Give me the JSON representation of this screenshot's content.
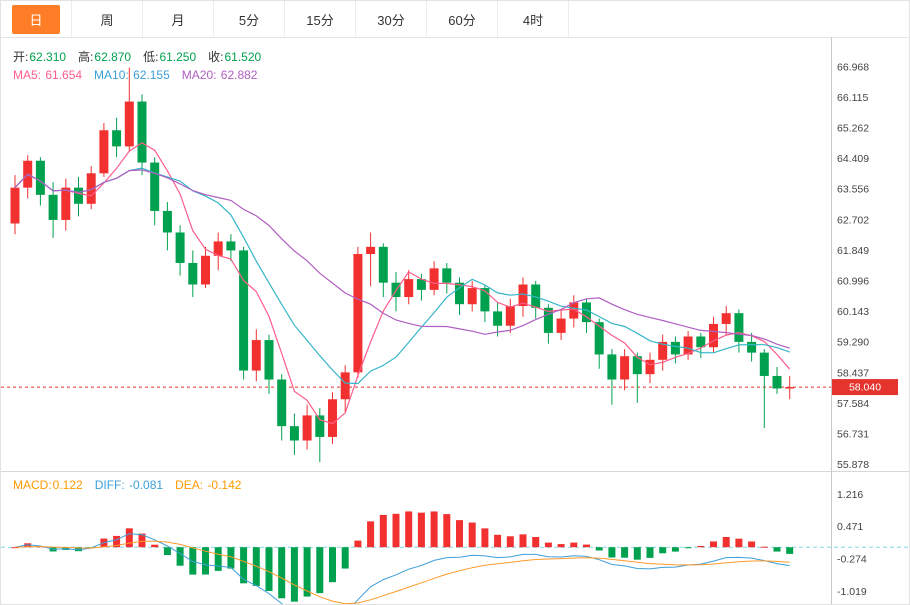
{
  "tabs": [
    {
      "label": "日",
      "name": "day",
      "active": true
    },
    {
      "label": "周",
      "name": "week",
      "active": false
    },
    {
      "label": "月",
      "name": "month",
      "active": false
    },
    {
      "label": "5分",
      "name": "5min",
      "active": false
    },
    {
      "label": "15分",
      "name": "15min",
      "active": false
    },
    {
      "label": "30分",
      "name": "30min",
      "active": false
    },
    {
      "label": "60分",
      "name": "60min",
      "active": false
    },
    {
      "label": "4时",
      "name": "4hour",
      "active": false
    }
  ],
  "main_chart": {
    "info_ohlc": [
      {
        "label": "开:",
        "value": "62.310",
        "value_color": "#00a14e"
      },
      {
        "label": "高:",
        "value": "62.870",
        "value_color": "#00a14e"
      },
      {
        "label": "低:",
        "value": "61.250",
        "value_color": "#00a14e"
      },
      {
        "label": "收:",
        "value": "61.520",
        "value_color": "#00a14e"
      }
    ],
    "info_ma": [
      {
        "label": "MA5: ",
        "value": "61.654",
        "color": "#ff5c8a"
      },
      {
        "label": "MA10: ",
        "value": "62.155",
        "color": "#3d9fd8"
      },
      {
        "label": "MA20: ",
        "value": "62.882",
        "color": "#b05fc2"
      }
    ],
    "axis_labels": [
      "66.968",
      "66.115",
      "65.262",
      "64.409",
      "63.556",
      "62.702",
      "61.849",
      "60.996",
      "60.143",
      "59.290",
      "58.437",
      "57.584",
      "56.731",
      "55.878"
    ],
    "price_tag": "58.040"
  },
  "macd_panel": {
    "info": [
      {
        "label": "MACD:",
        "value": "0.122",
        "color": "#ff9900"
      },
      {
        "label": "DIFF: ",
        "value": "-0.081",
        "color": "#3d9fd8"
      },
      {
        "label": "DEA: ",
        "value": "-0.142",
        "color": "#ff9900"
      }
    ],
    "axis_labels": [
      "1.216",
      "0.471",
      "-0.274",
      "-1.019"
    ]
  },
  "chart_data": {
    "type": "candlestick",
    "timeframe_selected": "日",
    "ohlc_display": {
      "open": 62.31,
      "high": 62.87,
      "low": 61.25,
      "close": 61.52
    },
    "indicators": {
      "ma": {
        "MA5": 61.654,
        "MA10": 62.155,
        "MA20": 62.882
      },
      "macd": {
        "MACD": 0.122,
        "DIFF": -0.081,
        "DEA": -0.142
      }
    },
    "last_price": 58.04,
    "y_ticks": [
      66.968,
      66.115,
      65.262,
      64.409,
      63.556,
      62.702,
      61.849,
      60.996,
      60.143,
      59.29,
      58.437,
      57.584,
      56.731,
      55.878
    ],
    "macd_ticks": [
      1.216,
      0.471,
      -0.274,
      -1.019
    ],
    "candles": [
      [
        62.6,
        63.95,
        62.3,
        63.6
      ],
      [
        63.6,
        64.5,
        63.3,
        64.35
      ],
      [
        64.35,
        64.45,
        63.1,
        63.4
      ],
      [
        63.4,
        63.75,
        62.2,
        62.7
      ],
      [
        62.7,
        63.85,
        62.4,
        63.6
      ],
      [
        63.6,
        63.9,
        62.8,
        63.15
      ],
      [
        63.15,
        64.2,
        63.0,
        64.0
      ],
      [
        64.0,
        65.4,
        63.9,
        65.2
      ],
      [
        65.2,
        65.55,
        64.45,
        64.75
      ],
      [
        64.75,
        66.95,
        64.6,
        66.0
      ],
      [
        66.0,
        66.2,
        63.95,
        64.3
      ],
      [
        64.3,
        64.45,
        62.55,
        62.95
      ],
      [
        62.95,
        63.2,
        61.85,
        62.35
      ],
      [
        62.35,
        62.55,
        61.15,
        61.5
      ],
      [
        61.5,
        61.85,
        60.55,
        60.9
      ],
      [
        60.9,
        61.95,
        60.8,
        61.7
      ],
      [
        61.7,
        62.35,
        61.3,
        62.1
      ],
      [
        62.1,
        62.3,
        61.55,
        61.85
      ],
      [
        61.85,
        61.95,
        58.25,
        58.5
      ],
      [
        58.5,
        59.65,
        58.2,
        59.35
      ],
      [
        59.35,
        59.5,
        57.85,
        58.25
      ],
      [
        58.25,
        58.4,
        56.55,
        56.95
      ],
      [
        56.95,
        57.3,
        56.15,
        56.55
      ],
      [
        56.55,
        57.55,
        56.3,
        57.25
      ],
      [
        57.25,
        57.45,
        55.95,
        56.65
      ],
      [
        56.65,
        57.9,
        56.45,
        57.7
      ],
      [
        57.7,
        58.65,
        57.35,
        58.45
      ],
      [
        58.45,
        61.95,
        58.3,
        61.75
      ],
      [
        61.75,
        62.35,
        60.85,
        61.95
      ],
      [
        61.95,
        62.05,
        60.55,
        60.95
      ],
      [
        60.95,
        61.25,
        60.15,
        60.55
      ],
      [
        60.55,
        61.3,
        60.35,
        61.05
      ],
      [
        61.05,
        61.2,
        60.45,
        60.75
      ],
      [
        60.75,
        61.55,
        60.6,
        61.35
      ],
      [
        61.35,
        61.5,
        60.65,
        60.95
      ],
      [
        60.95,
        61.1,
        60.05,
        60.35
      ],
      [
        60.35,
        61.0,
        60.15,
        60.8
      ],
      [
        60.8,
        60.9,
        59.85,
        60.15
      ],
      [
        60.15,
        60.4,
        59.45,
        59.75
      ],
      [
        59.75,
        60.5,
        59.55,
        60.3
      ],
      [
        60.3,
        61.1,
        60.0,
        60.9
      ],
      [
        60.9,
        61.0,
        59.95,
        60.25
      ],
      [
        60.25,
        60.35,
        59.25,
        59.55
      ],
      [
        59.55,
        60.2,
        59.35,
        59.95
      ],
      [
        59.95,
        60.6,
        59.7,
        60.4
      ],
      [
        60.4,
        60.5,
        59.55,
        59.85
      ],
      [
        59.85,
        59.95,
        58.55,
        58.95
      ],
      [
        58.95,
        59.1,
        57.55,
        58.25
      ],
      [
        58.25,
        59.1,
        57.95,
        58.9
      ],
      [
        58.9,
        59.0,
        57.6,
        58.4
      ],
      [
        58.4,
        59.0,
        58.15,
        58.8
      ],
      [
        58.8,
        59.5,
        58.5,
        59.3
      ],
      [
        59.3,
        59.45,
        58.7,
        58.95
      ],
      [
        58.95,
        59.6,
        58.8,
        59.45
      ],
      [
        59.45,
        59.55,
        58.85,
        59.15
      ],
      [
        59.15,
        60.0,
        59.0,
        59.8
      ],
      [
        59.8,
        60.3,
        59.5,
        60.1
      ],
      [
        60.1,
        60.2,
        59.0,
        59.3
      ],
      [
        59.3,
        59.55,
        58.75,
        59.0
      ],
      [
        59.0,
        59.1,
        56.9,
        58.35
      ],
      [
        58.35,
        58.6,
        57.85,
        58.0
      ],
      [
        58.0,
        58.35,
        57.7,
        58.04
      ]
    ],
    "colors": {
      "up": "#f23030",
      "down": "#00a14e",
      "ma5": "#ff5c8a",
      "ma10": "#36b6c8",
      "ma20": "#b05fc2",
      "diff": "#3d9fd8",
      "dea": "#ff9a2a",
      "price_line": "#e5342e",
      "zero_line": "#86d7e8",
      "active_tab": "#ff7d26"
    }
  }
}
